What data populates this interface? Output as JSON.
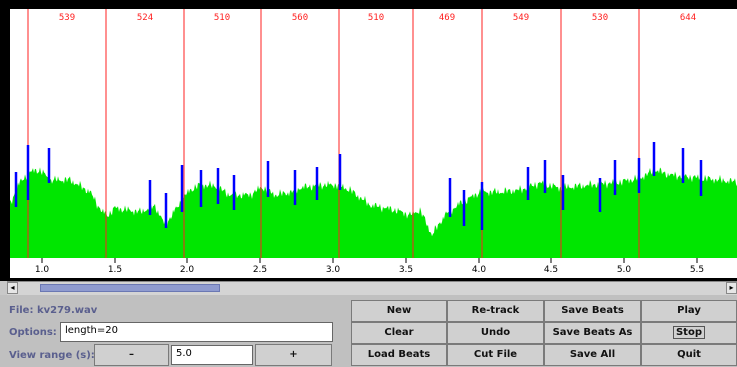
{
  "waveform": {
    "segment_values": [
      "539",
      "524",
      "510",
      "560",
      "510",
      "469",
      "549",
      "530",
      "644"
    ],
    "time_ticks": [
      "1.0",
      "1.5",
      "2.0",
      "2.5",
      "3.0",
      "3.5",
      "4.0",
      "4.5",
      "5.0",
      "5.5"
    ],
    "colors": {
      "background": "#000000",
      "envelope": "#00e600",
      "beat_marker": "#0000ff",
      "segment_line": "#ff2020",
      "axis_bg": "#ffffff"
    }
  },
  "scrollbar": {
    "left_arrow": "◂",
    "right_arrow": "▸"
  },
  "file": {
    "label": "File: kv279.wav"
  },
  "options": {
    "label": "Options:",
    "value": "length=20"
  },
  "view_range": {
    "label": "View range (s):",
    "minus": "–",
    "value": "5.0",
    "plus": "+"
  },
  "buttons": {
    "new": "New",
    "retrack": "Re-track",
    "save_beats": "Save Beats",
    "play": "Play",
    "clear": "Clear",
    "undo": "Undo",
    "save_beats_as": "Save Beats As",
    "stop": "Stop",
    "load_beats": "Load Beats",
    "cut_file": "Cut File",
    "save_all": "Save All",
    "quit": "Quit"
  }
}
